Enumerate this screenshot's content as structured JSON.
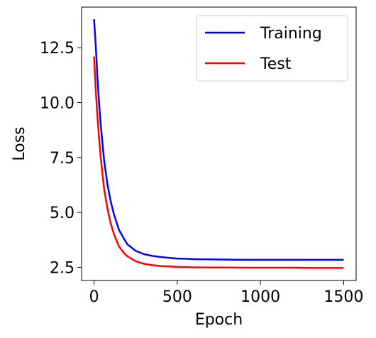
{
  "chart_data": {
    "type": "line",
    "title": "",
    "xlabel": "Epoch",
    "ylabel": "Loss",
    "xlim": [
      -75,
      1575
    ],
    "ylim": [
      1.9,
      14.35
    ],
    "xticks": [
      0,
      500,
      1000,
      1500
    ],
    "xtick_labels": [
      "0",
      "500",
      "1000",
      "1500"
    ],
    "yticks": [
      2.5,
      5.0,
      7.5,
      10.0,
      12.5
    ],
    "ytick_labels": [
      "2.5",
      "5.0",
      "7.5",
      "10.0",
      "12.5"
    ],
    "grid": false,
    "legend_position": "top-right",
    "series": [
      {
        "name": "Training",
        "color": "#0000ff",
        "x": [
          0,
          10,
          20,
          30,
          40,
          50,
          60,
          80,
          100,
          120,
          150,
          180,
          200,
          250,
          300,
          350,
          400,
          450,
          500,
          550,
          600,
          700,
          800,
          900,
          1000,
          1100,
          1200,
          1300,
          1400,
          1500
        ],
        "y": [
          13.8,
          12.6,
          11.2,
          10.0,
          9.0,
          8.2,
          7.4,
          6.3,
          5.5,
          4.9,
          4.2,
          3.8,
          3.55,
          3.25,
          3.1,
          3.02,
          2.97,
          2.93,
          2.9,
          2.89,
          2.87,
          2.86,
          2.85,
          2.84,
          2.84,
          2.84,
          2.84,
          2.84,
          2.84,
          2.84
        ]
      },
      {
        "name": "Test",
        "color": "#ff0000",
        "x": [
          0,
          10,
          20,
          30,
          40,
          50,
          60,
          80,
          100,
          120,
          150,
          180,
          200,
          250,
          300,
          350,
          400,
          450,
          500,
          550,
          600,
          700,
          800,
          900,
          1000,
          1100,
          1200,
          1300,
          1400,
          1500
        ],
        "y": [
          12.1,
          10.6,
          9.4,
          8.4,
          7.5,
          6.8,
          6.1,
          5.2,
          4.5,
          4.0,
          3.45,
          3.15,
          3.0,
          2.78,
          2.66,
          2.6,
          2.56,
          2.54,
          2.52,
          2.51,
          2.5,
          2.49,
          2.49,
          2.48,
          2.48,
          2.48,
          2.48,
          2.47,
          2.47,
          2.47
        ]
      }
    ]
  }
}
